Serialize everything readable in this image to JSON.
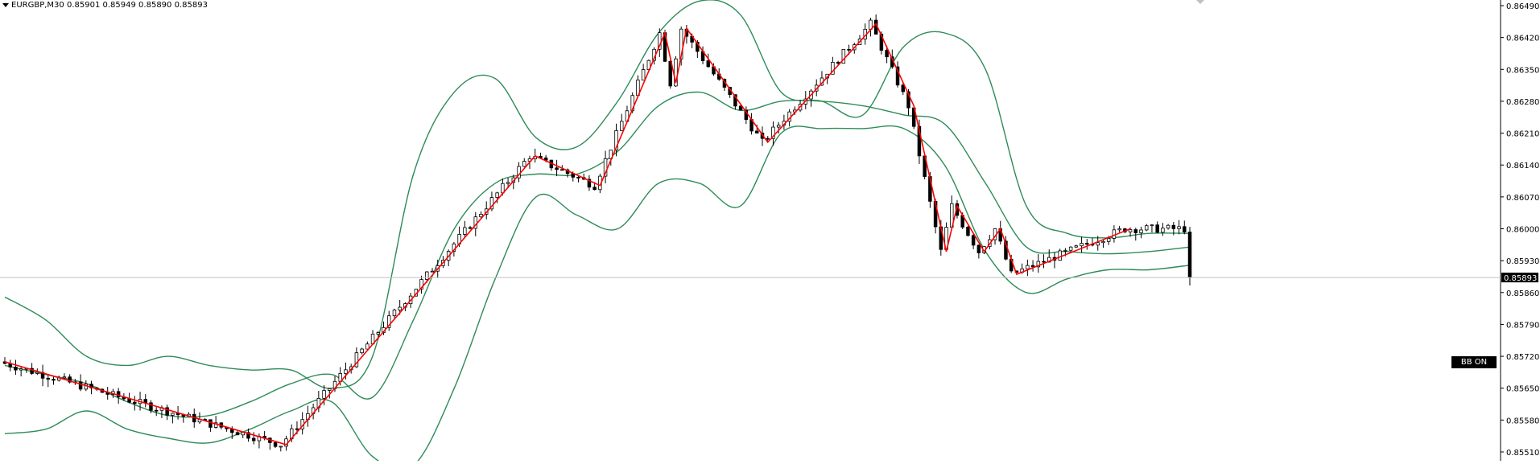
{
  "header": {
    "symbol": "EURGBP,M30",
    "open": "0.85901",
    "high": "0.85949",
    "low": "0.85890",
    "close": "0.85893"
  },
  "badge": {
    "label": "BB ON"
  },
  "colors": {
    "bollinger": "#2e8b57",
    "zigzag": "#ff0000",
    "candle_bull": "#ffffff",
    "candle_bear": "#000000",
    "price_line": "#c0c0c0"
  },
  "chart_data": {
    "type": "candlestick",
    "title": "EURGBP,M30",
    "y_axis_ticks": [
      "0.86490",
      "0.86420",
      "0.86350",
      "0.86280",
      "0.86210",
      "0.86140",
      "0.86070",
      "0.86000",
      "0.85930",
      "0.85860",
      "0.85790",
      "0.85720",
      "0.85650",
      "0.85580",
      "0.85510"
    ],
    "ylim": [
      0.8549,
      0.865
    ],
    "current_price": 0.85893,
    "current_price_label": "0.85893",
    "indicators": [
      "Bollinger Bands",
      "ZigZag"
    ],
    "candle_count": 220,
    "zigzag_prices": [
      0.85708,
      0.85526,
      0.8616,
      0.86095,
      0.8643,
      0.8632,
      0.8644,
      0.8619,
      0.8645,
      0.8627,
      0.8595,
      0.8605,
      0.8595,
      0.86,
      0.859,
      0.86
    ],
    "zigzag_bars": [
      0,
      52,
      98,
      110,
      122,
      124,
      126,
      141,
      161,
      168,
      174,
      176,
      181,
      184,
      187,
      208
    ],
    "bb_upper": [
      0.8585,
      0.858,
      0.8572,
      0.857,
      0.8572,
      0.857,
      0.8569,
      0.8569,
      0.8565,
      0.8572,
      0.8612,
      0.863,
      0.8633,
      0.862,
      0.8618,
      0.8628,
      0.8643,
      0.865,
      0.8647,
      0.863,
      0.8628,
      0.8625,
      0.864,
      0.8643,
      0.8635,
      0.8605,
      0.8599,
      0.8598,
      0.8599,
      0.8599
    ],
    "bb_middle": [
      0.857,
      0.8568,
      0.8566,
      0.8562,
      0.8559,
      0.8559,
      0.8562,
      0.8566,
      0.8568,
      0.8563,
      0.858,
      0.86,
      0.861,
      0.8612,
      0.8612,
      0.8617,
      0.8627,
      0.863,
      0.8626,
      0.8628,
      0.8628,
      0.8627,
      0.8625,
      0.8623,
      0.861,
      0.8596,
      0.8595,
      0.85945,
      0.8595,
      0.8596
    ],
    "bb_lower": [
      0.8555,
      0.8556,
      0.856,
      0.8556,
      0.8554,
      0.8553,
      0.8556,
      0.856,
      0.8562,
      0.855,
      0.8548,
      0.8565,
      0.8589,
      0.8607,
      0.8603,
      0.86,
      0.861,
      0.861,
      0.8605,
      0.8621,
      0.8622,
      0.8622,
      0.8622,
      0.8614,
      0.8595,
      0.8586,
      0.8589,
      0.8591,
      0.8591,
      0.8592
    ]
  }
}
